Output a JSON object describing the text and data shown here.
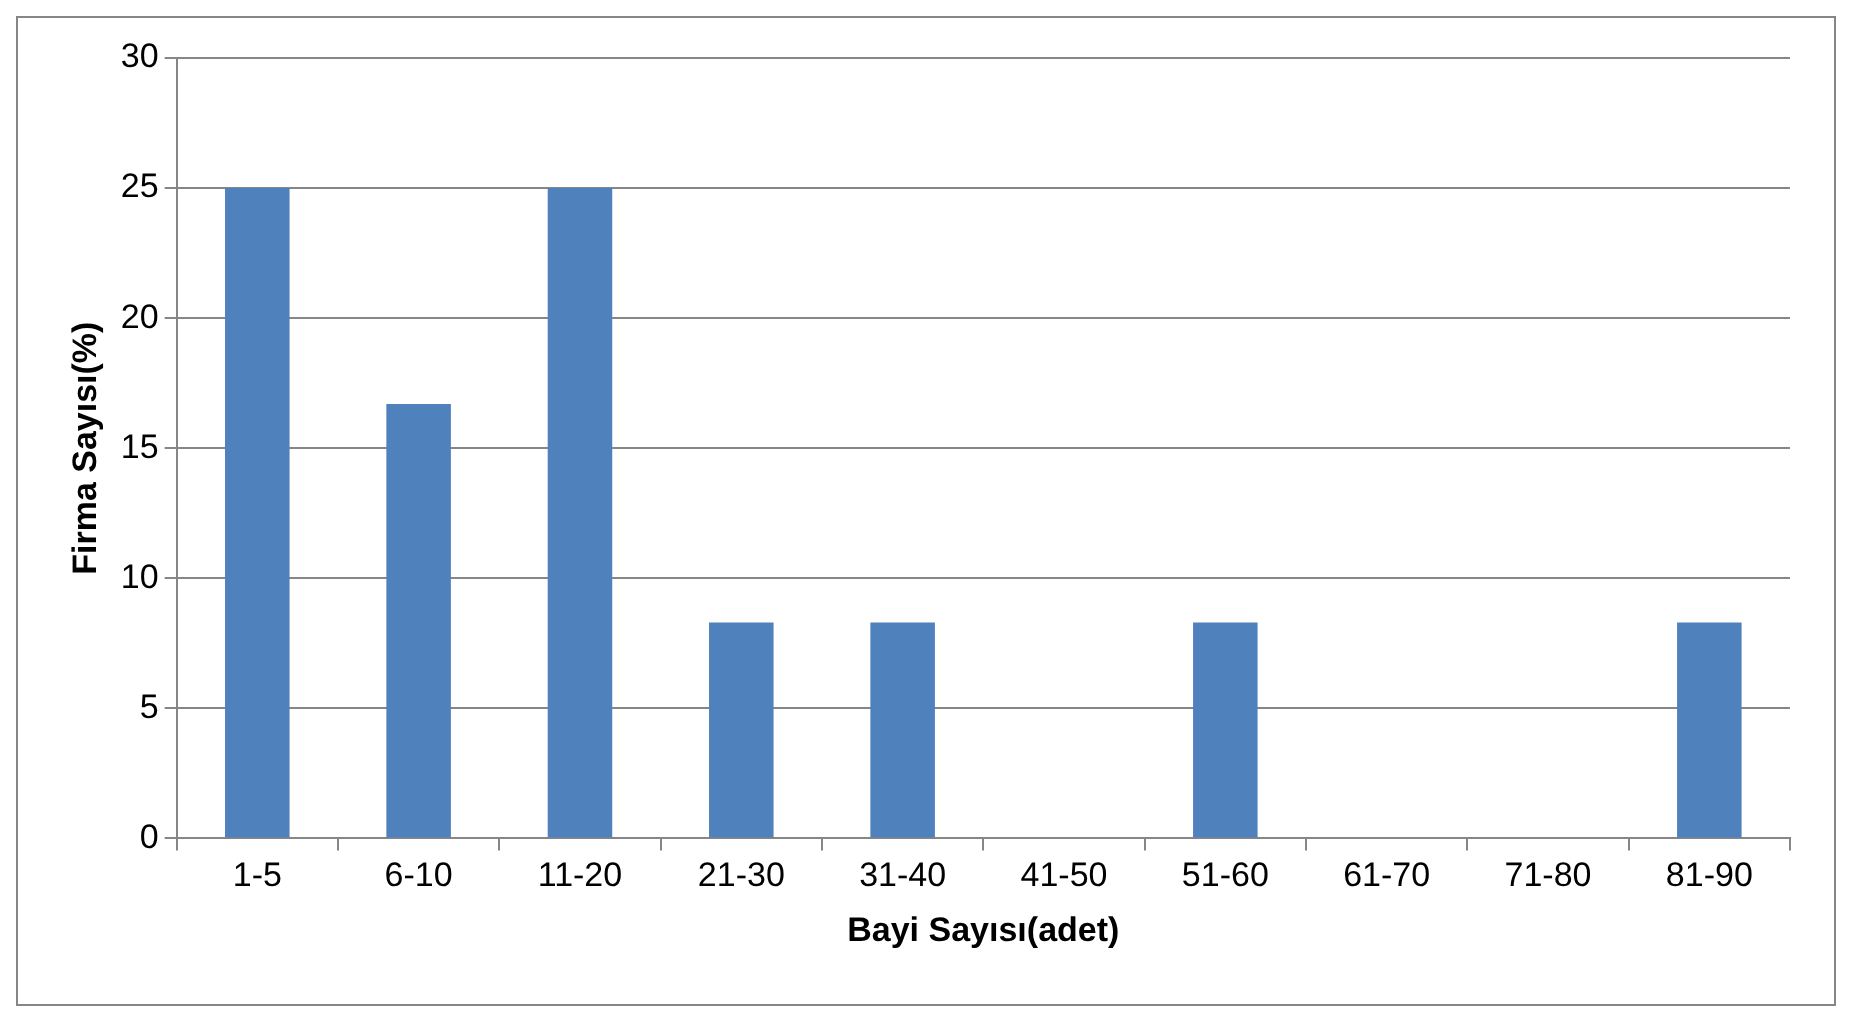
{
  "chart_data": {
    "type": "bar",
    "xlabel": "Bayi Sayısı(adet)",
    "ylabel": "Firma Sayısı(%)",
    "categories": [
      "1-5",
      "6-10",
      "11-20",
      "21-30",
      "31-40",
      "41-50",
      "51-60",
      "61-70",
      "71-80",
      "81-90"
    ],
    "values": [
      25,
      16.7,
      25,
      8.3,
      8.3,
      0,
      8.3,
      0,
      0,
      8.3
    ],
    "color": "#4f81bd",
    "ylim": [
      0,
      30
    ],
    "yticks": [
      0,
      5,
      10,
      15,
      20,
      25,
      30
    ],
    "grid": "y",
    "legend": false
  }
}
